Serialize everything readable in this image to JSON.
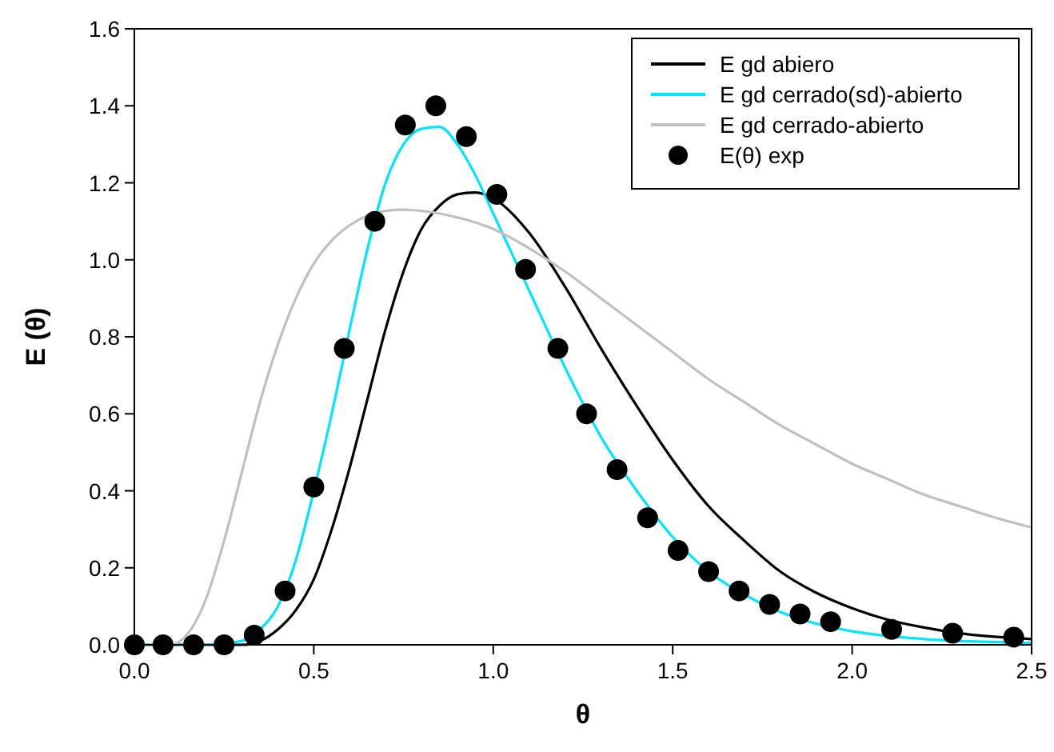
{
  "chart_data": {
    "type": "line",
    "xlabel": "θ",
    "ylabel": "E (θ)",
    "xlim": [
      0,
      2.5
    ],
    "ylim": [
      0,
      1.6
    ],
    "xticks": [
      {
        "value": 0,
        "label": "0.0"
      },
      0.5,
      {
        "value": 1,
        "label": "1.0"
      },
      1.5,
      {
        "value": 2,
        "label": "2.0"
      },
      2.5
    ],
    "yticks": [
      {
        "value": 0,
        "label": "0.0"
      },
      0.2,
      0.4,
      0.6,
      0.8,
      {
        "value": 1,
        "label": "1.0"
      },
      1.2,
      1.4,
      1.6
    ],
    "grid": false,
    "legend": "top right",
    "series": [
      {
        "name": "E gd abiero",
        "color": "#000000",
        "x": [
          0,
          0.3,
          0.35,
          0.4,
          0.45,
          0.5,
          0.55,
          0.6,
          0.65,
          0.7,
          0.75,
          0.8,
          0.85,
          0.9,
          0.95,
          1.0,
          1.1,
          1.2,
          1.3,
          1.4,
          1.5,
          1.6,
          1.7,
          1.8,
          1.9,
          2.0,
          2.1,
          2.2,
          2.3,
          2.5
        ],
        "values": [
          0,
          0,
          0.01,
          0.04,
          0.09,
          0.17,
          0.3,
          0.46,
          0.64,
          0.82,
          0.97,
          1.08,
          1.14,
          1.17,
          1.175,
          1.16,
          1.07,
          0.93,
          0.77,
          0.62,
          0.48,
          0.36,
          0.27,
          0.19,
          0.135,
          0.095,
          0.065,
          0.045,
          0.03,
          0.015
        ]
      },
      {
        "name": "E gd cerrado(sd)-abierto",
        "color": "#00e5ff",
        "x": [
          0,
          0.2,
          0.3,
          0.35,
          0.4,
          0.45,
          0.5,
          0.55,
          0.6,
          0.65,
          0.7,
          0.75,
          0.8,
          0.85,
          0.9,
          0.95,
          1.0,
          1.1,
          1.2,
          1.3,
          1.4,
          1.5,
          1.6,
          1.7,
          1.8,
          1.9,
          2.0,
          2.2,
          2.5
        ],
        "values": [
          0,
          0,
          0.01,
          0.04,
          0.1,
          0.22,
          0.4,
          0.6,
          0.82,
          1.03,
          1.2,
          1.3,
          1.34,
          1.345,
          1.3,
          1.22,
          1.12,
          0.92,
          0.72,
          0.54,
          0.4,
          0.28,
          0.19,
          0.13,
          0.085,
          0.055,
          0.035,
          0.015,
          0.005
        ]
      },
      {
        "name": "E gd cerrado-abierto",
        "color": "#c0c0c0",
        "x": [
          0,
          0.1,
          0.15,
          0.2,
          0.25,
          0.3,
          0.35,
          0.4,
          0.45,
          0.5,
          0.55,
          0.6,
          0.65,
          0.7,
          0.75,
          0.8,
          0.9,
          1.0,
          1.1,
          1.2,
          1.3,
          1.4,
          1.5,
          1.6,
          1.7,
          1.8,
          1.9,
          2.0,
          2.1,
          2.2,
          2.3,
          2.4,
          2.5
        ],
        "values": [
          0,
          0,
          0.03,
          0.12,
          0.27,
          0.45,
          0.63,
          0.78,
          0.9,
          0.99,
          1.05,
          1.09,
          1.115,
          1.127,
          1.13,
          1.127,
          1.11,
          1.08,
          1.03,
          0.97,
          0.9,
          0.83,
          0.76,
          0.69,
          0.63,
          0.57,
          0.52,
          0.47,
          0.43,
          0.39,
          0.36,
          0.33,
          0.305
        ]
      },
      {
        "name": "E(θ) exp",
        "type": "scatter",
        "color": "#000000",
        "marker": "circle",
        "x": [
          0,
          0.08,
          0.165,
          0.25,
          0.334,
          0.42,
          0.5,
          0.585,
          0.67,
          0.755,
          0.84,
          0.925,
          1.01,
          1.09,
          1.18,
          1.26,
          1.345,
          1.43,
          1.515,
          1.6,
          1.685,
          1.77,
          1.855,
          1.94,
          2.11,
          2.28,
          2.45
        ],
        "values": [
          0,
          0,
          0,
          0,
          0.025,
          0.14,
          0.41,
          0.77,
          1.1,
          1.35,
          1.4,
          1.32,
          1.17,
          0.975,
          0.77,
          0.6,
          0.455,
          0.33,
          0.245,
          0.19,
          0.14,
          0.105,
          0.08,
          0.06,
          0.04,
          0.03,
          0.02
        ]
      }
    ]
  }
}
